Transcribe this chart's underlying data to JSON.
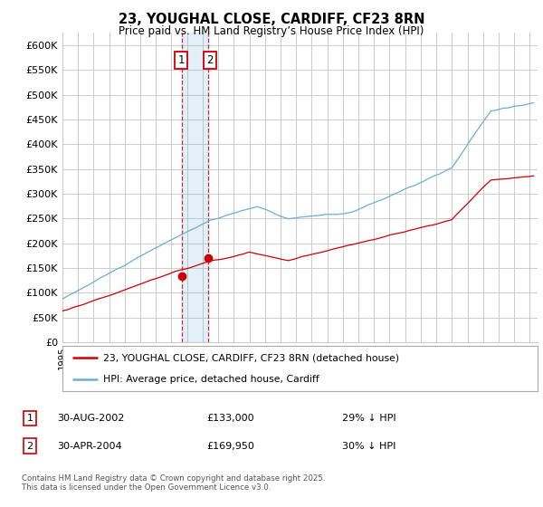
{
  "title": "23, YOUGHAL CLOSE, CARDIFF, CF23 8RN",
  "subtitle": "Price paid vs. HM Land Registry’s House Price Index (HPI)",
  "ylabel_ticks": [
    "£0",
    "£50K",
    "£100K",
    "£150K",
    "£200K",
    "£250K",
    "£300K",
    "£350K",
    "£400K",
    "£450K",
    "£500K",
    "£550K",
    "£600K"
  ],
  "ylim": [
    0,
    620000
  ],
  "xlim_start": 1995.0,
  "xlim_end": 2025.5,
  "legend_line1": "23, YOUGHAL CLOSE, CARDIFF, CF23 8RN (detached house)",
  "legend_line2": "HPI: Average price, detached house, Cardiff",
  "sale1_date": "30-AUG-2002",
  "sale1_price": 133000,
  "sale1_label": "£133,000",
  "sale1_pct": "29% ↓ HPI",
  "sale2_date": "30-APR-2004",
  "sale2_price": 169950,
  "sale2_label": "£169,950",
  "sale2_pct": "30% ↓ HPI",
  "copyright": "Contains HM Land Registry data © Crown copyright and database right 2025.\nThis data is licensed under the Open Government Licence v3.0.",
  "hpi_color": "#6baed6",
  "property_color": "#cc0000",
  "background_color": "#ffffff",
  "grid_color": "#cccccc",
  "sale1_x": 2002.667,
  "sale2_x": 2004.333
}
